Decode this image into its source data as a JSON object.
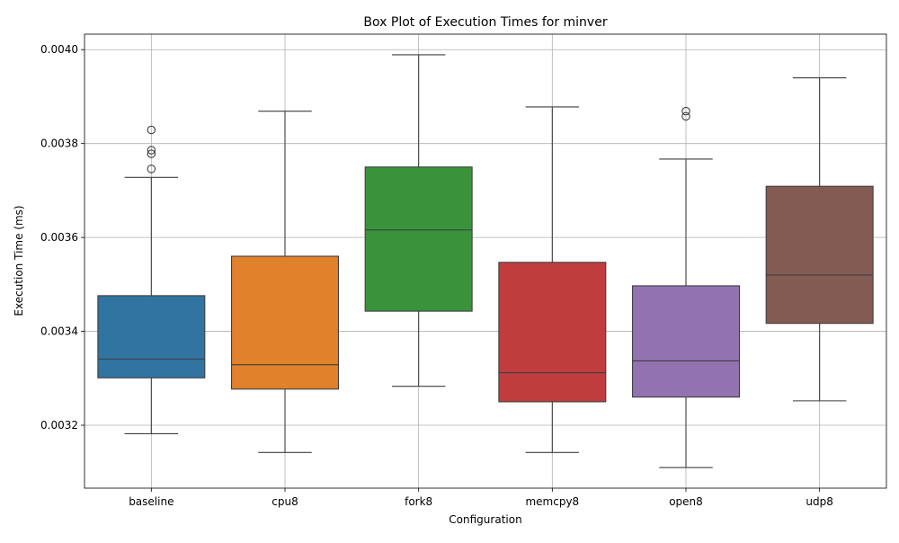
{
  "chart_data": {
    "type": "box",
    "title": "Box Plot of Execution Times for minver",
    "xlabel": "Configuration",
    "ylabel": "Execution Time (ms)",
    "ylim": [
      0.003066,
      0.004033
    ],
    "grid": true,
    "y_ticks": [
      {
        "value": 0.0032,
        "label": "0.0032"
      },
      {
        "value": 0.0034,
        "label": "0.0034"
      },
      {
        "value": 0.0036,
        "label": "0.0036"
      },
      {
        "value": 0.0038,
        "label": "0.0038"
      },
      {
        "value": 0.004,
        "label": "0.0040"
      }
    ],
    "categories": [
      "baseline",
      "cpu8",
      "fork8",
      "memcpy8",
      "open8",
      "udp8"
    ],
    "boxes": [
      {
        "name": "baseline",
        "color": "#3274a1",
        "whisker_low": 0.003182,
        "q1": 0.003301,
        "median": 0.003341,
        "q3": 0.003476,
        "whisker_high": 0.003728,
        "outliers": [
          0.003746,
          0.003778,
          0.003786,
          0.003829
        ]
      },
      {
        "name": "cpu8",
        "color": "#e1812c",
        "whisker_low": 0.003142,
        "q1": 0.003277,
        "median": 0.003329,
        "q3": 0.00356,
        "whisker_high": 0.003869,
        "outliers": []
      },
      {
        "name": "fork8",
        "color": "#3a923a",
        "whisker_low": 0.003283,
        "q1": 0.003443,
        "median": 0.003616,
        "q3": 0.00375,
        "whisker_high": 0.003989,
        "outliers": []
      },
      {
        "name": "memcpy8",
        "color": "#c03d3e",
        "whisker_low": 0.003142,
        "q1": 0.00325,
        "median": 0.003312,
        "q3": 0.003547,
        "whisker_high": 0.003878,
        "outliers": []
      },
      {
        "name": "open8",
        "color": "#9372b2",
        "whisker_low": 0.00311,
        "q1": 0.00326,
        "median": 0.003337,
        "q3": 0.003497,
        "whisker_high": 0.003767,
        "outliers": [
          0.003858,
          0.003869
        ]
      },
      {
        "name": "udp8",
        "color": "#845b53",
        "whisker_low": 0.003252,
        "q1": 0.003417,
        "median": 0.00352,
        "q3": 0.003709,
        "whisker_high": 0.00394,
        "outliers": []
      }
    ]
  }
}
